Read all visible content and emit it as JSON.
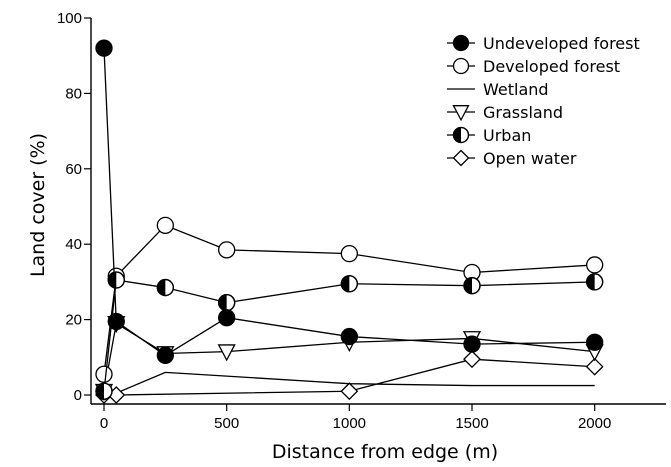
{
  "chart_data": {
    "type": "line",
    "title": "",
    "xlabel": "Distance from edge (m)",
    "ylabel": "Land cover (%)",
    "xlim": [
      0,
      2250
    ],
    "ylim": [
      0,
      100
    ],
    "x_ticks": [
      0,
      500,
      1000,
      1500,
      2000
    ],
    "y_ticks": [
      0,
      20,
      40,
      60,
      80,
      100
    ],
    "x": [
      0,
      50,
      250,
      500,
      1000,
      1500,
      2000
    ],
    "grid": false,
    "legend_position": "top-right",
    "series": [
      {
        "name": "Undeveloped forest",
        "marker": "filled-circle",
        "values": [
          92,
          19.5,
          10.5,
          20.5,
          15.5,
          13.5,
          14
        ]
      },
      {
        "name": "Developed forest",
        "marker": "open-circle",
        "values": [
          5.5,
          31.5,
          45,
          38.5,
          37.5,
          32.5,
          34.5
        ]
      },
      {
        "name": "Wetland",
        "marker": "none",
        "values": [
          0.5,
          0.5,
          6,
          5,
          3,
          2.5,
          2.5
        ]
      },
      {
        "name": "Grassland",
        "marker": "open-triangle-down",
        "values": [
          1,
          19,
          11,
          11.5,
          14,
          15,
          11.5
        ]
      },
      {
        "name": "Urban",
        "marker": "half-filled-circle",
        "values": [
          1,
          30.5,
          28.5,
          24.5,
          29.5,
          29,
          30
        ]
      },
      {
        "name": "Open water",
        "marker": "open-diamond",
        "values": [
          0,
          0,
          null,
          null,
          1,
          9.5,
          7.5
        ]
      }
    ]
  }
}
